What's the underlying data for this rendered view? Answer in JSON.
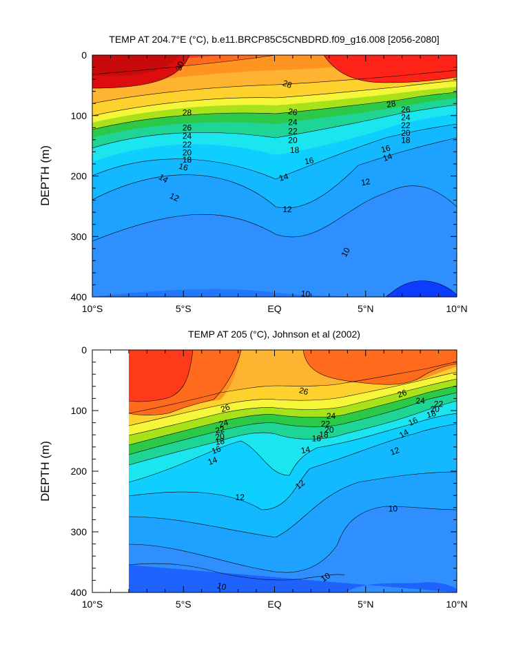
{
  "chart_data": [
    {
      "type": "heatmap",
      "subtype": "filled-contour",
      "title": "TEMP AT 204.7°E (°C), b.e11.BRCP85C5CNBDRD.f09_g16.008 [2056-2080]",
      "xlabel": "",
      "ylabel": "DEPTH (m)",
      "x_ticks": [
        -10,
        -5,
        0,
        5,
        10
      ],
      "x_tick_labels": [
        "10°S",
        "5°S",
        "EQ",
        "5°N",
        "10°N"
      ],
      "y_ticks": [
        0,
        100,
        200,
        300,
        400
      ],
      "y_tick_labels": [
        "0",
        "100",
        "200",
        "300",
        "400"
      ],
      "xlim": [
        -10,
        10
      ],
      "ylim": [
        400,
        0
      ],
      "contour_interval": 1,
      "contour_labels": [
        {
          "text": "30",
          "x": -5.2,
          "y": 18,
          "angle": -70
        },
        {
          "text": "28",
          "x": 0.7,
          "y": 48,
          "angle": 20
        },
        {
          "text": "28",
          "x": -4.8,
          "y": 95,
          "angle": 0
        },
        {
          "text": "28",
          "x": 6.4,
          "y": 81,
          "angle": -10
        },
        {
          "text": "26",
          "x": -4.8,
          "y": 120,
          "angle": 0
        },
        {
          "text": "26",
          "x": 1.0,
          "y": 94,
          "angle": 10
        },
        {
          "text": "26",
          "x": 7.2,
          "y": 90,
          "angle": 0
        },
        {
          "text": "24",
          "x": -4.8,
          "y": 134,
          "angle": 0
        },
        {
          "text": "24",
          "x": 1.0,
          "y": 111,
          "angle": 0
        },
        {
          "text": "24",
          "x": 7.2,
          "y": 103,
          "angle": 0
        },
        {
          "text": "22",
          "x": -4.8,
          "y": 148,
          "angle": 0
        },
        {
          "text": "22",
          "x": 1.0,
          "y": 126,
          "angle": 0
        },
        {
          "text": "22",
          "x": 7.2,
          "y": 116,
          "angle": 0
        },
        {
          "text": "20",
          "x": -4.8,
          "y": 161,
          "angle": 0
        },
        {
          "text": "20",
          "x": 1.0,
          "y": 141,
          "angle": 0
        },
        {
          "text": "20",
          "x": 7.2,
          "y": 129,
          "angle": 0
        },
        {
          "text": "18",
          "x": -4.8,
          "y": 173,
          "angle": 0
        },
        {
          "text": "18",
          "x": 1.1,
          "y": 157,
          "angle": 0
        },
        {
          "text": "18",
          "x": 7.2,
          "y": 141,
          "angle": 0
        },
        {
          "text": "16",
          "x": -5.0,
          "y": 185,
          "angle": 15
        },
        {
          "text": "16",
          "x": 1.9,
          "y": 175,
          "angle": -10
        },
        {
          "text": "16",
          "x": 6.1,
          "y": 155,
          "angle": -15
        },
        {
          "text": "14",
          "x": -6.1,
          "y": 204,
          "angle": 30
        },
        {
          "text": "14",
          "x": 0.5,
          "y": 202,
          "angle": -15
        },
        {
          "text": "14",
          "x": 6.2,
          "y": 169,
          "angle": -20
        },
        {
          "text": "12",
          "x": -5.5,
          "y": 235,
          "angle": 25
        },
        {
          "text": "12",
          "x": 0.7,
          "y": 255,
          "angle": 0
        },
        {
          "text": "12",
          "x": 5.0,
          "y": 210,
          "angle": -10
        },
        {
          "text": "10",
          "x": 3.9,
          "y": 326,
          "angle": -62
        },
        {
          "text": "10",
          "x": 1.7,
          "y": 395,
          "angle": 5
        }
      ]
    },
    {
      "type": "heatmap",
      "subtype": "filled-contour",
      "title": "TEMP AT 205 (°C), Johnson et al (2002)",
      "xlabel": "",
      "ylabel": "DEPTH (m)",
      "x_ticks": [
        -10,
        -5,
        0,
        5,
        10
      ],
      "x_tick_labels": [
        "10°S",
        "5°S",
        "EQ",
        "5°N",
        "10°N"
      ],
      "y_ticks": [
        0,
        100,
        200,
        300,
        400
      ],
      "y_tick_labels": [
        "0",
        "100",
        "200",
        "300",
        "400"
      ],
      "xlim": [
        -10,
        10
      ],
      "ylim": [
        400,
        0
      ],
      "data_x_range": [
        -8,
        10
      ],
      "contour_interval": 1,
      "contour_labels": [
        {
          "text": "26",
          "x": 1.6,
          "y": 68,
          "angle": 15
        },
        {
          "text": "26",
          "x": -2.7,
          "y": 96,
          "angle": -20
        },
        {
          "text": "26",
          "x": 7.0,
          "y": 72,
          "angle": -20
        },
        {
          "text": "24",
          "x": -2.8,
          "y": 121,
          "angle": -15
        },
        {
          "text": "24",
          "x": 3.1,
          "y": 109,
          "angle": 0
        },
        {
          "text": "24",
          "x": 8.0,
          "y": 84,
          "angle": 0
        },
        {
          "text": "22",
          "x": -3.0,
          "y": 132,
          "angle": -10
        },
        {
          "text": "22",
          "x": 2.8,
          "y": 122,
          "angle": 0
        },
        {
          "text": "22",
          "x": 9.0,
          "y": 89,
          "angle": 0
        },
        {
          "text": "20",
          "x": -3.0,
          "y": 143,
          "angle": -10
        },
        {
          "text": "20",
          "x": 3.0,
          "y": 132,
          "angle": 0
        },
        {
          "text": "20",
          "x": 8.8,
          "y": 98,
          "angle": 0
        },
        {
          "text": "18",
          "x": -3.0,
          "y": 151,
          "angle": -10
        },
        {
          "text": "18",
          "x": 2.7,
          "y": 140,
          "angle": 0
        },
        {
          "text": "18",
          "x": 8.6,
          "y": 106,
          "angle": -15
        },
        {
          "text": "16",
          "x": -3.2,
          "y": 165,
          "angle": -20
        },
        {
          "text": "16",
          "x": 2.3,
          "y": 146,
          "angle": 0
        },
        {
          "text": "16",
          "x": 7.6,
          "y": 118,
          "angle": -25
        },
        {
          "text": "14",
          "x": -3.4,
          "y": 183,
          "angle": -20
        },
        {
          "text": "14",
          "x": 1.7,
          "y": 165,
          "angle": -10
        },
        {
          "text": "14",
          "x": 7.1,
          "y": 138,
          "angle": -30
        },
        {
          "text": "12",
          "x": -1.9,
          "y": 243,
          "angle": 0
        },
        {
          "text": "12",
          "x": 1.4,
          "y": 222,
          "angle": -40
        },
        {
          "text": "12",
          "x": 6.6,
          "y": 167,
          "angle": -20
        },
        {
          "text": "10",
          "x": 6.5,
          "y": 262,
          "angle": 0
        },
        {
          "text": "10",
          "x": 2.8,
          "y": 375,
          "angle": -35
        },
        {
          "text": "10",
          "x": -2.9,
          "y": 390,
          "angle": 15
        }
      ]
    }
  ]
}
